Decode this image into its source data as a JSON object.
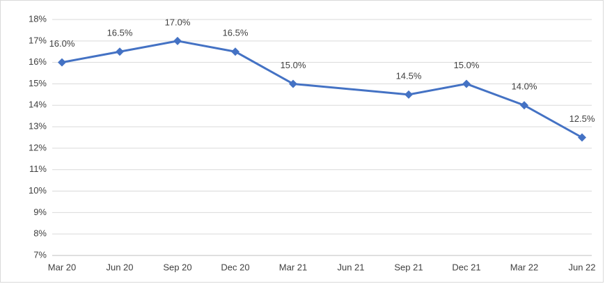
{
  "chart_data": {
    "type": "line",
    "categories": [
      "Mar 20",
      "Jun 20",
      "Sep 20",
      "Dec 20",
      "Mar 21",
      "Jun 21",
      "Sep 21",
      "Dec 21",
      "Mar 22",
      "Jun 22"
    ],
    "values": [
      16.0,
      16.5,
      17.0,
      16.5,
      15.0,
      null,
      14.5,
      15.0,
      14.0,
      12.5
    ],
    "value_labels": [
      "16.0%",
      "16.5%",
      "17.0%",
      "16.5%",
      "15.0%",
      null,
      "14.5%",
      "15.0%",
      "14.0%",
      "12.5%"
    ],
    "color": "#4472c4",
    "ylim": [
      7,
      18
    ],
    "yticks": [
      {
        "value": 7,
        "label": "7%"
      },
      {
        "value": 8,
        "label": "8%"
      },
      {
        "value": 9,
        "label": "9%"
      },
      {
        "value": 10,
        "label": "10%"
      },
      {
        "value": 11,
        "label": "11%"
      },
      {
        "value": 12,
        "label": "12%"
      },
      {
        "value": 13,
        "label": "13%"
      },
      {
        "value": 14,
        "label": "14%"
      },
      {
        "value": 15,
        "label": "15%"
      },
      {
        "value": 16,
        "label": "16%"
      },
      {
        "value": 17,
        "label": "17%"
      },
      {
        "value": 18,
        "label": "18%"
      }
    ],
    "grid": true
  }
}
